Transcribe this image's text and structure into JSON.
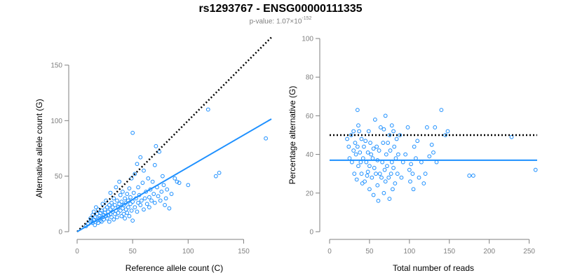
{
  "header": {
    "title": "rs1293767 - ENSG00000111335",
    "pvalue_prefix": "p-value: 1.07×10",
    "pvalue_exponent": "-152"
  },
  "colors": {
    "points": "#1e90ff",
    "fit": "#1e90ff",
    "reference": "#000000",
    "axis": "#7f7f7f"
  },
  "chart_data": [
    {
      "type": "scatter",
      "title": "",
      "xlabel": "Reference allele count (C)",
      "ylabel": "Alternative allele count (G)",
      "xlim": [
        0,
        175
      ],
      "ylim": [
        0,
        150
      ],
      "xticks": [
        0,
        50,
        100,
        150
      ],
      "yticks": [
        0,
        50,
        100,
        150
      ],
      "grid": false,
      "reference_line": {
        "style": "dotted",
        "slope": 1,
        "intercept": 0,
        "x": [
          0,
          175
        ]
      },
      "fit_line": {
        "style": "solid",
        "slope": 0.58,
        "intercept": 0,
        "x": [
          0,
          175
        ]
      },
      "points": [
        [
          8,
          5
        ],
        [
          10,
          7
        ],
        [
          12,
          9
        ],
        [
          12,
          12
        ],
        [
          13,
          10
        ],
        [
          14,
          8
        ],
        [
          14,
          15
        ],
        [
          15,
          11
        ],
        [
          15,
          18
        ],
        [
          16,
          6
        ],
        [
          16,
          13
        ],
        [
          17,
          22
        ],
        [
          18,
          10
        ],
        [
          18,
          16
        ],
        [
          19,
          8
        ],
        [
          19,
          20
        ],
        [
          20,
          12
        ],
        [
          20,
          14
        ],
        [
          21,
          17
        ],
        [
          21,
          10
        ],
        [
          22,
          19
        ],
        [
          22,
          9
        ],
        [
          23,
          13
        ],
        [
          23,
          25
        ],
        [
          24,
          15
        ],
        [
          24,
          11
        ],
        [
          25,
          20
        ],
        [
          25,
          17
        ],
        [
          26,
          14
        ],
        [
          26,
          28
        ],
        [
          27,
          12
        ],
        [
          27,
          22
        ],
        [
          28,
          18
        ],
        [
          28,
          15
        ],
        [
          29,
          9
        ],
        [
          29,
          24
        ],
        [
          30,
          16
        ],
        [
          30,
          20
        ],
        [
          30,
          35
        ],
        [
          31,
          13
        ],
        [
          31,
          26
        ],
        [
          32,
          18
        ],
        [
          32,
          22
        ],
        [
          33,
          11
        ],
        [
          33,
          30
        ],
        [
          34,
          24
        ],
        [
          34,
          16
        ],
        [
          35,
          19
        ],
        [
          35,
          40
        ],
        [
          36,
          13
        ],
        [
          36,
          28
        ],
        [
          37,
          22
        ],
        [
          37,
          17
        ],
        [
          38,
          25
        ],
        [
          38,
          45
        ],
        [
          39,
          19
        ],
        [
          39,
          33
        ],
        [
          40,
          14
        ],
        [
          40,
          27
        ],
        [
          41,
          21
        ],
        [
          41,
          36
        ],
        [
          42,
          16
        ],
        [
          42,
          24
        ],
        [
          43,
          30
        ],
        [
          43,
          12
        ],
        [
          44,
          26
        ],
        [
          44,
          20
        ],
        [
          45,
          34
        ],
        [
          45,
          17
        ],
        [
          46,
          28
        ],
        [
          46,
          22
        ],
        [
          47,
          39
        ],
        [
          47,
          14
        ],
        [
          48,
          25
        ],
        [
          48,
          31
        ],
        [
          49,
          19
        ],
        [
          49,
          48
        ],
        [
          50,
          27
        ],
        [
          50,
          10
        ],
        [
          50,
          89
        ],
        [
          51,
          35
        ],
        [
          52,
          22
        ],
        [
          52,
          52
        ],
        [
          53,
          30
        ],
        [
          54,
          18
        ],
        [
          54,
          61
        ],
        [
          55,
          26
        ],
        [
          55,
          40
        ],
        [
          56,
          33
        ],
        [
          57,
          67
        ],
        [
          57,
          24
        ],
        [
          58,
          28
        ],
        [
          59,
          44
        ],
        [
          60,
          20
        ],
        [
          60,
          55
        ],
        [
          61,
          30
        ],
        [
          62,
          36
        ],
        [
          63,
          25
        ],
        [
          64,
          48
        ],
        [
          65,
          31
        ],
        [
          65,
          22
        ],
        [
          66,
          38
        ],
        [
          67,
          28
        ],
        [
          68,
          45
        ],
        [
          69,
          34
        ],
        [
          70,
          60
        ],
        [
          70,
          26
        ],
        [
          71,
          77
        ],
        [
          72,
          40
        ],
        [
          73,
          32
        ],
        [
          74,
          72
        ],
        [
          75,
          28
        ],
        [
          76,
          36
        ],
        [
          77,
          50
        ],
        [
          78,
          42
        ],
        [
          79,
          24
        ],
        [
          80,
          30
        ],
        [
          81,
          38
        ],
        [
          83,
          21
        ],
        [
          85,
          34
        ],
        [
          88,
          48
        ],
        [
          90,
          45
        ],
        [
          92,
          44
        ],
        [
          100,
          42
        ],
        [
          118,
          110
        ],
        [
          125,
          50
        ],
        [
          128,
          53
        ],
        [
          170,
          84
        ]
      ]
    },
    {
      "type": "scatter",
      "title": "",
      "xlabel": "Total number of reads",
      "ylabel": "Percentage alternative (G)",
      "xlim": [
        0,
        260
      ],
      "ylim": [
        0,
        100
      ],
      "xticks": [
        0,
        50,
        100,
        150,
        200,
        250
      ],
      "yticks": [
        0,
        20,
        40,
        60,
        80,
        100
      ],
      "grid": false,
      "reference_line": {
        "style": "dotted",
        "y": 50,
        "x": [
          0,
          260
        ]
      },
      "fit_line": {
        "style": "solid",
        "y": 37,
        "x": [
          0,
          260
        ]
      },
      "points": [
        [
          22,
          48
        ],
        [
          24,
          44
        ],
        [
          25,
          38
        ],
        [
          27,
          50
        ],
        [
          28,
          36
        ],
        [
          30,
          42
        ],
        [
          30,
          52
        ],
        [
          31,
          30
        ],
        [
          32,
          46
        ],
        [
          33,
          40
        ],
        [
          34,
          27
        ],
        [
          35,
          63
        ],
        [
          35,
          44
        ],
        [
          36,
          34
        ],
        [
          36,
          55
        ],
        [
          37,
          52
        ],
        [
          38,
          41
        ],
        [
          39,
          36
        ],
        [
          40,
          30
        ],
        [
          40,
          48
        ],
        [
          41,
          25
        ],
        [
          42,
          38
        ],
        [
          43,
          44
        ],
        [
          44,
          26
        ],
        [
          45,
          47
        ],
        [
          46,
          36
        ],
        [
          47,
          29
        ],
        [
          48,
          41
        ],
        [
          48,
          31
        ],
        [
          49,
          52
        ],
        [
          50,
          34
        ],
        [
          50,
          22
        ],
        [
          51,
          46
        ],
        [
          52,
          40
        ],
        [
          53,
          28
        ],
        [
          54,
          38
        ],
        [
          55,
          19
        ],
        [
          55,
          43
        ],
        [
          56,
          33
        ],
        [
          57,
          58
        ],
        [
          58,
          30
        ],
        [
          59,
          44
        ],
        [
          60,
          24
        ],
        [
          60,
          37
        ],
        [
          61,
          16
        ],
        [
          62,
          42
        ],
        [
          63,
          30
        ],
        [
          64,
          54
        ],
        [
          65,
          28
        ],
        [
          66,
          36
        ],
        [
          67,
          46
        ],
        [
          68,
          20
        ],
        [
          68,
          53
        ],
        [
          69,
          32
        ],
        [
          70,
          60
        ],
        [
          70,
          26
        ],
        [
          71,
          40
        ],
        [
          72,
          34
        ],
        [
          73,
          46
        ],
        [
          74,
          28
        ],
        [
          75,
          50
        ],
        [
          75,
          17
        ],
        [
          76,
          42
        ],
        [
          77,
          30
        ],
        [
          78,
          55
        ],
        [
          78,
          36
        ],
        [
          79,
          22
        ],
        [
          80,
          52
        ],
        [
          80,
          33
        ],
        [
          81,
          44
        ],
        [
          82,
          25
        ],
        [
          83,
          38
        ],
        [
          84,
          48
        ],
        [
          85,
          30
        ],
        [
          86,
          40
        ],
        [
          88,
          50
        ],
        [
          90,
          28
        ],
        [
          92,
          36
        ],
        [
          95,
          40
        ],
        [
          98,
          54
        ],
        [
          100,
          32
        ],
        [
          101,
          26
        ],
        [
          102,
          35
        ],
        [
          104,
          30
        ],
        [
          105,
          22
        ],
        [
          106,
          44
        ],
        [
          108,
          38
        ],
        [
          110,
          47
        ],
        [
          112,
          28
        ],
        [
          115,
          36
        ],
        [
          118,
          25
        ],
        [
          120,
          30
        ],
        [
          122,
          54
        ],
        [
          125,
          39
        ],
        [
          128,
          45
        ],
        [
          130,
          41
        ],
        [
          132,
          54
        ],
        [
          134,
          36
        ],
        [
          140,
          63
        ],
        [
          145,
          50
        ],
        [
          148,
          52
        ],
        [
          175,
          29
        ],
        [
          180,
          29
        ],
        [
          228,
          49
        ],
        [
          258,
          32
        ]
      ]
    }
  ]
}
